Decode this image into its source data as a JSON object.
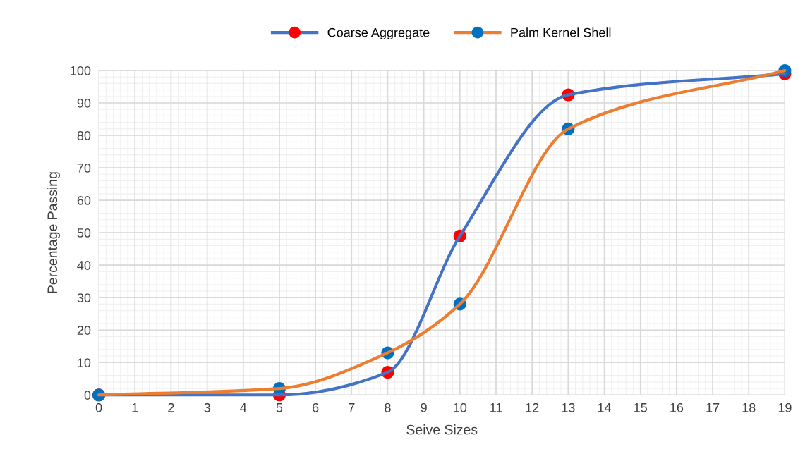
{
  "chart_data": {
    "type": "line",
    "xlabel": "Seive Sizes",
    "ylabel": "Percentage Passing",
    "x": [
      0,
      5,
      8,
      10,
      13,
      19
    ],
    "series": [
      {
        "name": "Coarse Aggregate",
        "color": "#4472c4",
        "colors": [
          "#ff0000",
          "#ff0000",
          "#ff0000",
          "#ff0000",
          "#ff0000",
          "#ff0000"
        ],
        "values": [
          0,
          0,
          7,
          49,
          92.5,
          99
        ]
      },
      {
        "name": "Palm Kernel Shell",
        "color": "#ed7d31",
        "colors": [
          "#0070c0",
          "#0070c0",
          "#0070c0",
          "#0070c0",
          "#0070c0",
          "#0070c0"
        ],
        "values": [
          0,
          2,
          13,
          28,
          82,
          100
        ]
      }
    ],
    "xlim": [
      0,
      19
    ],
    "xticks": [
      0,
      1,
      2,
      3,
      4,
      5,
      6,
      7,
      8,
      9,
      10,
      11,
      12,
      13,
      14,
      15,
      16,
      17,
      18,
      19
    ],
    "ylim": [
      0,
      100
    ],
    "yticks": [
      0,
      10,
      20,
      30,
      40,
      50,
      60,
      70,
      80,
      90,
      100
    ],
    "grid": true,
    "legend": "top",
    "marker": "circle",
    "line_style": "solid"
  }
}
